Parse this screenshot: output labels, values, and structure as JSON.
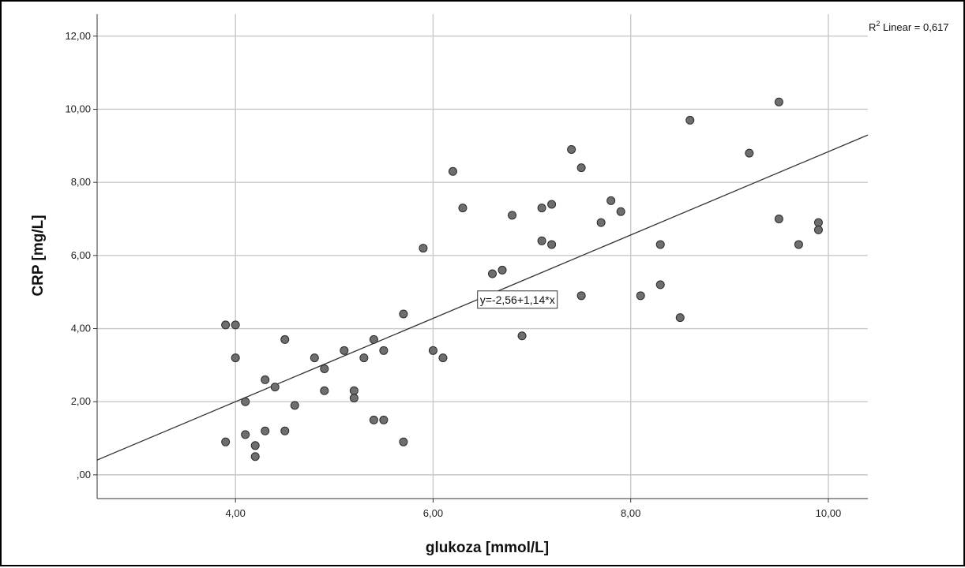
{
  "chart_data": {
    "type": "scatter",
    "xlabel": "glukoza [mmol/L]",
    "ylabel": "CRP [mg/L]",
    "xlim": [
      2.6,
      10.4
    ],
    "ylim": [
      -0.65,
      12.6
    ],
    "x_ticks": [
      {
        "value": 4,
        "label": "4,00"
      },
      {
        "value": 6,
        "label": "6,00"
      },
      {
        "value": 8,
        "label": "8,00"
      },
      {
        "value": 10,
        "label": "10,00"
      }
    ],
    "y_ticks": [
      {
        "value": 0,
        "label": ",00"
      },
      {
        "value": 2,
        "label": "2,00"
      },
      {
        "value": 4,
        "label": "4,00"
      },
      {
        "value": 6,
        "label": "6,00"
      },
      {
        "value": 8,
        "label": "8,00"
      },
      {
        "value": 10,
        "label": "10,00"
      },
      {
        "value": 12,
        "label": "12,00"
      }
    ],
    "grid": true,
    "points": [
      {
        "x": 3.9,
        "y": 4.1
      },
      {
        "x": 4.0,
        "y": 4.1
      },
      {
        "x": 4.0,
        "y": 3.2
      },
      {
        "x": 3.9,
        "y": 0.9
      },
      {
        "x": 4.1,
        "y": 2.0
      },
      {
        "x": 4.1,
        "y": 1.1
      },
      {
        "x": 4.2,
        "y": 0.8
      },
      {
        "x": 4.2,
        "y": 0.5
      },
      {
        "x": 4.3,
        "y": 2.6
      },
      {
        "x": 4.3,
        "y": 1.2
      },
      {
        "x": 4.4,
        "y": 2.4
      },
      {
        "x": 4.5,
        "y": 3.7
      },
      {
        "x": 4.5,
        "y": 1.2
      },
      {
        "x": 4.6,
        "y": 1.9
      },
      {
        "x": 4.8,
        "y": 3.2
      },
      {
        "x": 4.9,
        "y": 2.9
      },
      {
        "x": 4.9,
        "y": 2.3
      },
      {
        "x": 5.1,
        "y": 3.4
      },
      {
        "x": 5.2,
        "y": 2.3
      },
      {
        "x": 5.2,
        "y": 2.1
      },
      {
        "x": 5.3,
        "y": 3.2
      },
      {
        "x": 5.4,
        "y": 3.7
      },
      {
        "x": 5.4,
        "y": 1.5
      },
      {
        "x": 5.5,
        "y": 3.4
      },
      {
        "x": 5.5,
        "y": 1.5
      },
      {
        "x": 5.7,
        "y": 4.4
      },
      {
        "x": 5.7,
        "y": 0.9
      },
      {
        "x": 5.9,
        "y": 6.2
      },
      {
        "x": 6.0,
        "y": 3.4
      },
      {
        "x": 6.1,
        "y": 3.2
      },
      {
        "x": 6.2,
        "y": 8.3
      },
      {
        "x": 6.3,
        "y": 7.3
      },
      {
        "x": 6.6,
        "y": 5.5
      },
      {
        "x": 6.7,
        "y": 5.6
      },
      {
        "x": 6.8,
        "y": 7.1
      },
      {
        "x": 6.9,
        "y": 3.8
      },
      {
        "x": 7.1,
        "y": 7.3
      },
      {
        "x": 7.1,
        "y": 6.4
      },
      {
        "x": 7.2,
        "y": 7.4
      },
      {
        "x": 7.2,
        "y": 6.3
      },
      {
        "x": 7.4,
        "y": 8.9
      },
      {
        "x": 7.5,
        "y": 8.4
      },
      {
        "x": 7.5,
        "y": 4.9
      },
      {
        "x": 7.7,
        "y": 6.9
      },
      {
        "x": 7.8,
        "y": 7.5
      },
      {
        "x": 7.9,
        "y": 7.2
      },
      {
        "x": 8.1,
        "y": 4.9
      },
      {
        "x": 8.3,
        "y": 6.3
      },
      {
        "x": 8.3,
        "y": 5.2
      },
      {
        "x": 8.5,
        "y": 4.3
      },
      {
        "x": 8.6,
        "y": 9.7
      },
      {
        "x": 9.2,
        "y": 8.8
      },
      {
        "x": 9.5,
        "y": 10.2
      },
      {
        "x": 9.5,
        "y": 7.0
      },
      {
        "x": 9.7,
        "y": 6.3
      },
      {
        "x": 9.9,
        "y": 6.9
      },
      {
        "x": 9.9,
        "y": 6.7
      }
    ],
    "fit_line": {
      "intercept": -2.56,
      "slope": 1.14
    },
    "fit_equation_label": "y=-2,56+1,14*x",
    "r2_label_prefix": "R",
    "r2_label_sup": "2",
    "r2_label_suffix": " Linear = 0,617",
    "colors": {
      "point_fill": "#6e6e6e",
      "point_stroke": "#2b2b2b",
      "grid": "#c8c8c8",
      "axis": "#333333",
      "fit_line": "#333333"
    }
  }
}
